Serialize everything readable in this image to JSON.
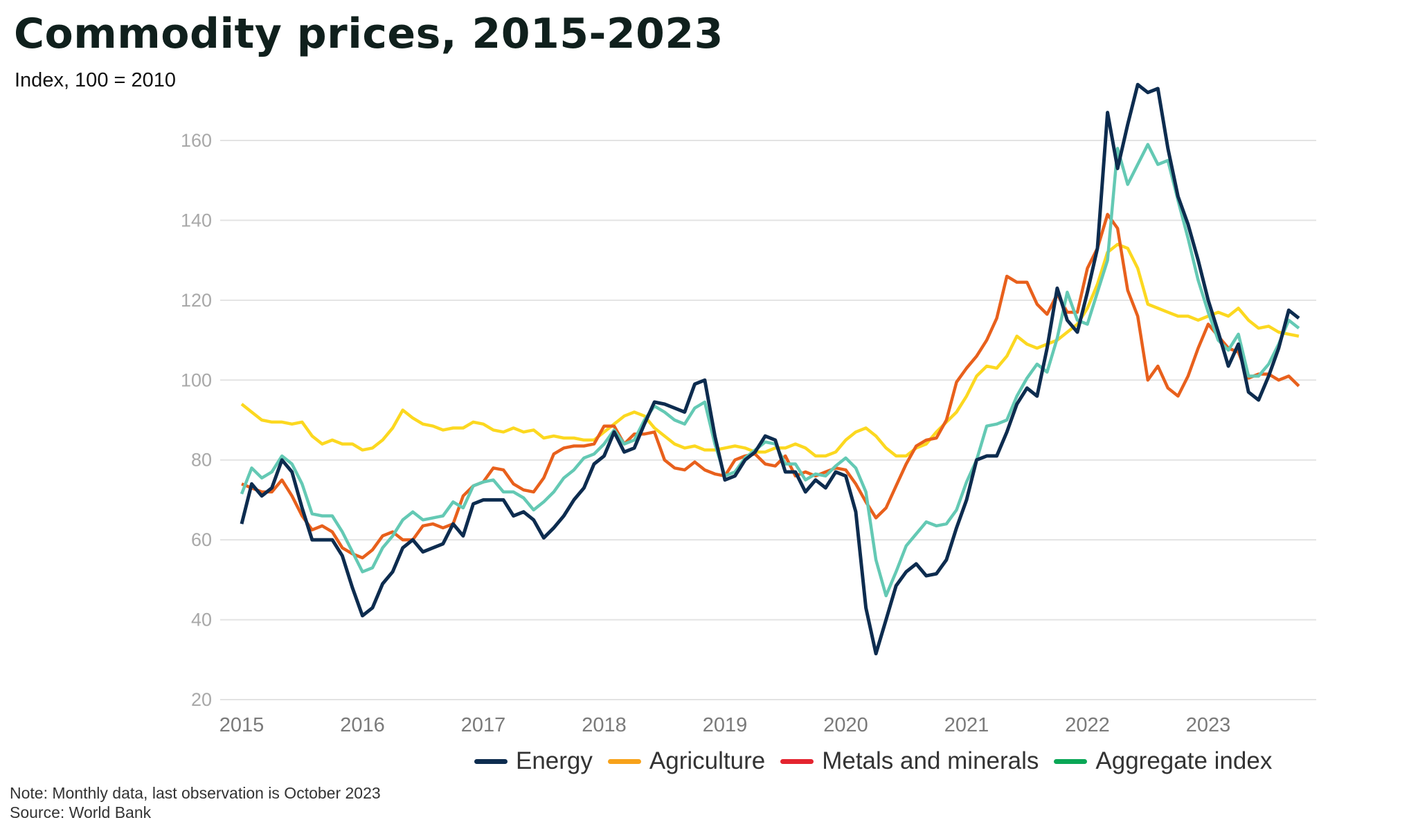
{
  "title": "Commodity prices, 2015-2023",
  "subtitle": "Index, 100 = 2010",
  "notes": {
    "note": "Note: Monthly data, last observation is October 2023",
    "source": "Source: World Bank"
  },
  "chart_data": {
    "type": "line",
    "title": "Commodity prices, 2015-2023",
    "ylabel": "Index, 100 = 2010",
    "x_start": "2015-01",
    "x_end": "2023-10",
    "frequency": "monthly",
    "xticks": [
      "2015",
      "2016",
      "2017",
      "2018",
      "2019",
      "2020",
      "2021",
      "2022",
      "2023"
    ],
    "yticks": [
      20,
      40,
      60,
      80,
      100,
      120,
      140,
      160
    ],
    "ylim": [
      20,
      175
    ],
    "grid": "horizontal",
    "legend_position": "bottom-right",
    "legend": [
      {
        "name": "Energy",
        "color": "#0d2c4f"
      },
      {
        "name": "Agriculture",
        "color": "#f7a21a"
      },
      {
        "name": "Metals and minerals",
        "color": "#e4242f"
      },
      {
        "name": "Aggregate index",
        "color": "#0aa756"
      }
    ],
    "series": [
      {
        "name": "Energy",
        "color": "#0d2c4f",
        "values": [
          64,
          74,
          71,
          73,
          80,
          77,
          68,
          60,
          60,
          60,
          56,
          48,
          41,
          43,
          49,
          52,
          58,
          60,
          57,
          58,
          59,
          64,
          61,
          69,
          70,
          70,
          70,
          66,
          67,
          65,
          60.5,
          63,
          66,
          70,
          73,
          79,
          81,
          87,
          82,
          83,
          89,
          94.5,
          94,
          93,
          92,
          99,
          100,
          86,
          75,
          76,
          80,
          82,
          86,
          85,
          77,
          77,
          72,
          75,
          73,
          77,
          76,
          67,
          43,
          31.5,
          40,
          48.5,
          52,
          54,
          51,
          51.5,
          55,
          63,
          70,
          80,
          81,
          81,
          87,
          94,
          98,
          96,
          108,
          123,
          115,
          112,
          122,
          133,
          167,
          153,
          164,
          174,
          172,
          173,
          158,
          146,
          139,
          130,
          120,
          112,
          103.5,
          109,
          97,
          95,
          101,
          108,
          117.5,
          115.5
        ]
      },
      {
        "name": "Agriculture",
        "color": "#fcd820",
        "values": [
          94,
          92,
          90,
          89.5,
          89.5,
          89,
          89.5,
          86,
          84,
          85,
          84,
          84,
          82.5,
          83,
          85,
          88,
          92.5,
          90.5,
          89,
          88.5,
          87.5,
          88,
          88,
          89.5,
          89,
          87.5,
          87,
          88,
          87,
          87.5,
          85.5,
          86,
          85.5,
          85.5,
          85,
          85,
          87,
          89,
          91,
          92,
          91,
          88,
          86,
          84,
          83,
          83.5,
          82.5,
          82.5,
          83,
          83.5,
          83,
          82,
          82,
          83,
          83,
          84,
          83,
          81,
          81,
          82,
          85,
          87,
          88,
          86,
          83,
          81,
          81,
          83,
          84,
          87,
          89.5,
          92,
          96,
          101,
          103.5,
          103,
          106,
          111,
          109,
          108,
          109,
          110,
          112,
          114,
          118,
          124,
          132,
          134,
          133,
          128,
          119,
          118,
          117,
          116,
          116,
          115,
          116,
          117,
          116,
          118,
          115,
          113,
          113.5,
          112,
          111.5,
          111
        ]
      },
      {
        "name": "Metals and minerals",
        "color": "#e8601c",
        "values": [
          74,
          73,
          72,
          72,
          75,
          71,
          66,
          62.5,
          63.5,
          62,
          58,
          56.5,
          55.5,
          57.5,
          61,
          62,
          60,
          60,
          63.5,
          64,
          63,
          64,
          71,
          73.5,
          74.5,
          78,
          77.5,
          74,
          72.5,
          72,
          75.5,
          81.5,
          83,
          83.5,
          83.5,
          84,
          88.5,
          88.5,
          84,
          86.5,
          86.5,
          87,
          80,
          78,
          77.5,
          79.5,
          77.5,
          76.5,
          76,
          80,
          81,
          81.5,
          79,
          78.5,
          81,
          76,
          77,
          76,
          77,
          78,
          77.5,
          74,
          69.5,
          65.5,
          68,
          73.5,
          79,
          83.5,
          85,
          85.5,
          90,
          99.5,
          103,
          106,
          110,
          115.5,
          126,
          124.5,
          124.5,
          119,
          116.5,
          121.5,
          117,
          117,
          128,
          133,
          141.5,
          138,
          122.5,
          116,
          100,
          103.5,
          98,
          96,
          101,
          108,
          114,
          111,
          108,
          107,
          100.5,
          101.5,
          101.5,
          100,
          101,
          98.5
        ]
      },
      {
        "name": "Aggregate index",
        "color": "#64c9b4",
        "values": [
          71.5,
          78,
          75.5,
          77,
          81,
          79,
          74,
          66.5,
          66,
          66,
          62,
          57,
          52,
          53,
          58,
          61,
          65,
          67,
          65,
          65.5,
          66,
          69.5,
          68,
          73.5,
          74.5,
          75,
          72,
          72,
          70.5,
          67.5,
          69.5,
          72,
          75.5,
          77.5,
          80.5,
          81.5,
          84,
          87.5,
          84,
          85,
          90,
          93.5,
          92,
          90,
          89,
          93,
          94.5,
          84,
          76,
          77,
          80.5,
          82.5,
          84.5,
          84,
          79,
          79,
          75,
          76.5,
          76,
          78.5,
          80.5,
          78,
          72,
          55,
          46,
          52,
          58.5,
          61.5,
          64.5,
          63.5,
          64,
          67.5,
          74.5,
          80,
          88.5,
          89,
          90,
          96,
          100.5,
          104,
          102,
          110.5,
          122,
          115,
          114,
          122,
          130,
          158,
          149,
          154,
          159,
          154,
          155,
          145,
          135.5,
          125,
          117,
          110,
          107.5,
          111.5,
          101,
          101,
          104,
          109,
          115,
          113
        ]
      }
    ]
  }
}
